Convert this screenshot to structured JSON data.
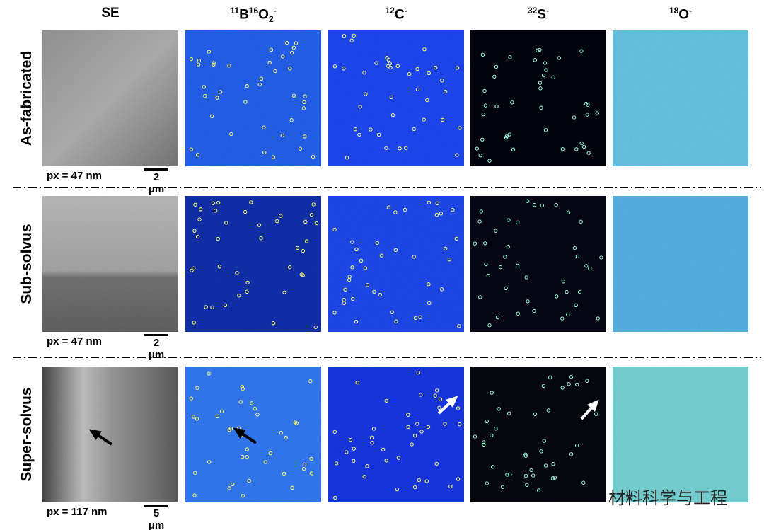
{
  "columns": [
    [
      {
        "text": "SE"
      }
    ],
    [
      {
        "sup": "11"
      },
      {
        "text": "B"
      },
      {
        "sup": "16"
      },
      {
        "text": "O"
      },
      {
        "sub": "2"
      },
      {
        "sup": "-"
      }
    ],
    [
      {
        "sup": "12"
      },
      {
        "text": "C"
      },
      {
        "sup": "-"
      }
    ],
    [
      {
        "sup": "32"
      },
      {
        "text": "S"
      },
      {
        "sup": "-"
      }
    ],
    [
      {
        "sup": "18"
      },
      {
        "text": "O"
      },
      {
        "sup": "-"
      }
    ]
  ],
  "rows": [
    {
      "label": "As-fabricated",
      "pixel_size": "px = 47 nm",
      "scale_bar": "2 μm"
    },
    {
      "label": "Sub-solvus",
      "pixel_size": "px = 47 nm",
      "scale_bar": "2 μm"
    },
    {
      "label": "Super-solvus",
      "pixel_size": "px = 117 nm",
      "scale_bar": "5 μm"
    }
  ],
  "watermark": "材料科学与工程"
}
